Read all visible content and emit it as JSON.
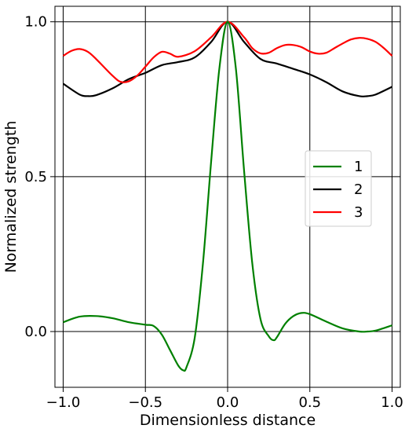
{
  "chart_data": {
    "type": "line",
    "title": "",
    "xlabel": "Dimensionless distance",
    "ylabel": "Normalized strength",
    "xlim": [
      -1.05,
      1.05
    ],
    "ylim": [
      -0.18,
      1.05
    ],
    "x_ticks": [
      -1.0,
      -0.5,
      0.0,
      0.5,
      1.0
    ],
    "x_tick_labels": [
      "−1.0",
      "−0.5",
      "0.0",
      "0.5",
      "1.0"
    ],
    "y_ticks": [
      0.0,
      0.5,
      1.0
    ],
    "y_tick_labels": [
      "0.0",
      "0.5",
      "1.0"
    ],
    "grid": true,
    "grid_color": "#000000",
    "legend_position": "center-right",
    "series": [
      {
        "name": "1",
        "color": "#008000",
        "x": [
          -1.0,
          -0.9,
          -0.8,
          -0.7,
          -0.6,
          -0.5,
          -0.45,
          -0.4,
          -0.35,
          -0.3,
          -0.27,
          -0.25,
          -0.2,
          -0.15,
          -0.1,
          -0.05,
          0.0,
          0.05,
          0.1,
          0.15,
          0.2,
          0.25,
          0.28,
          0.3,
          0.35,
          0.4,
          0.45,
          0.5,
          0.6,
          0.7,
          0.8,
          0.85,
          0.9,
          1.0
        ],
        "y": [
          0.03,
          0.048,
          0.05,
          0.043,
          0.03,
          0.022,
          0.018,
          -0.01,
          -0.06,
          -0.11,
          -0.125,
          -0.115,
          -0.02,
          0.22,
          0.55,
          0.85,
          1.0,
          0.85,
          0.52,
          0.22,
          0.04,
          -0.015,
          -0.028,
          -0.018,
          0.025,
          0.05,
          0.06,
          0.056,
          0.032,
          0.01,
          0.0,
          0.0,
          0.003,
          0.02
        ]
      },
      {
        "name": "2",
        "color": "#000000",
        "x": [
          -1.0,
          -0.9,
          -0.85,
          -0.8,
          -0.7,
          -0.6,
          -0.5,
          -0.4,
          -0.3,
          -0.2,
          -0.1,
          0.0,
          0.1,
          0.2,
          0.3,
          0.4,
          0.5,
          0.6,
          0.7,
          0.8,
          0.85,
          0.9,
          1.0
        ],
        "y": [
          0.8,
          0.765,
          0.76,
          0.763,
          0.785,
          0.815,
          0.835,
          0.86,
          0.87,
          0.885,
          0.935,
          1.0,
          0.935,
          0.88,
          0.865,
          0.848,
          0.83,
          0.805,
          0.775,
          0.76,
          0.76,
          0.765,
          0.79
        ]
      },
      {
        "name": "3",
        "color": "#ff0000",
        "x": [
          -1.0,
          -0.95,
          -0.9,
          -0.85,
          -0.8,
          -0.7,
          -0.65,
          -0.6,
          -0.55,
          -0.5,
          -0.45,
          -0.4,
          -0.35,
          -0.3,
          -0.2,
          -0.1,
          0.0,
          0.1,
          0.15,
          0.2,
          0.25,
          0.3,
          0.35,
          0.4,
          0.45,
          0.5,
          0.55,
          0.6,
          0.65,
          0.7,
          0.75,
          0.8,
          0.85,
          0.9,
          0.95,
          1.0
        ],
        "y": [
          0.89,
          0.906,
          0.912,
          0.903,
          0.88,
          0.826,
          0.806,
          0.808,
          0.826,
          0.855,
          0.885,
          0.903,
          0.897,
          0.887,
          0.905,
          0.95,
          1.0,
          0.95,
          0.915,
          0.898,
          0.9,
          0.915,
          0.925,
          0.925,
          0.918,
          0.904,
          0.897,
          0.9,
          0.915,
          0.93,
          0.943,
          0.948,
          0.945,
          0.935,
          0.915,
          0.89
        ]
      }
    ]
  }
}
